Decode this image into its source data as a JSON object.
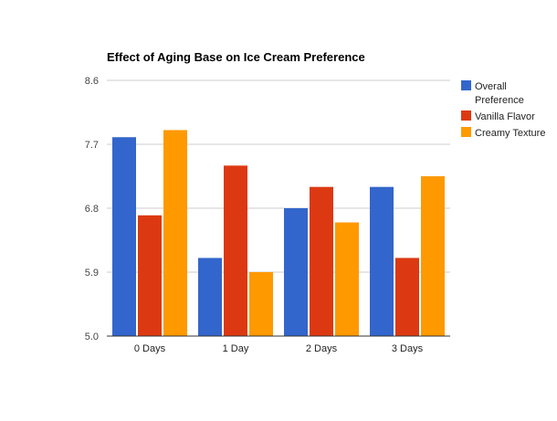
{
  "chart_data": {
    "type": "bar",
    "title": "Effect of Aging Base on Ice Cream Preference",
    "xlabel": "",
    "ylabel": "",
    "categories": [
      "0 Days",
      "1 Day",
      "2 Days",
      "3 Days"
    ],
    "series": [
      {
        "name": "Overall Preference",
        "name_lines": [
          "Overall",
          "Preference"
        ],
        "color": "#3366cc",
        "values": [
          7.8,
          6.1,
          6.8,
          7.1
        ]
      },
      {
        "name": "Vanilla Flavor",
        "name_lines": [
          "Vanilla Flavor"
        ],
        "color": "#dc3912",
        "values": [
          6.7,
          7.4,
          7.1,
          6.1
        ]
      },
      {
        "name": "Creamy Texture",
        "name_lines": [
          "Creamy Texture"
        ],
        "color": "#ff9900",
        "values": [
          7.9,
          5.9,
          6.6,
          7.25
        ]
      }
    ],
    "ylim": [
      5.0,
      8.6
    ],
    "yticks": [
      "5.0",
      "5.9",
      "6.8",
      "7.7",
      "8.6"
    ],
    "grid": true,
    "legend": "right"
  }
}
